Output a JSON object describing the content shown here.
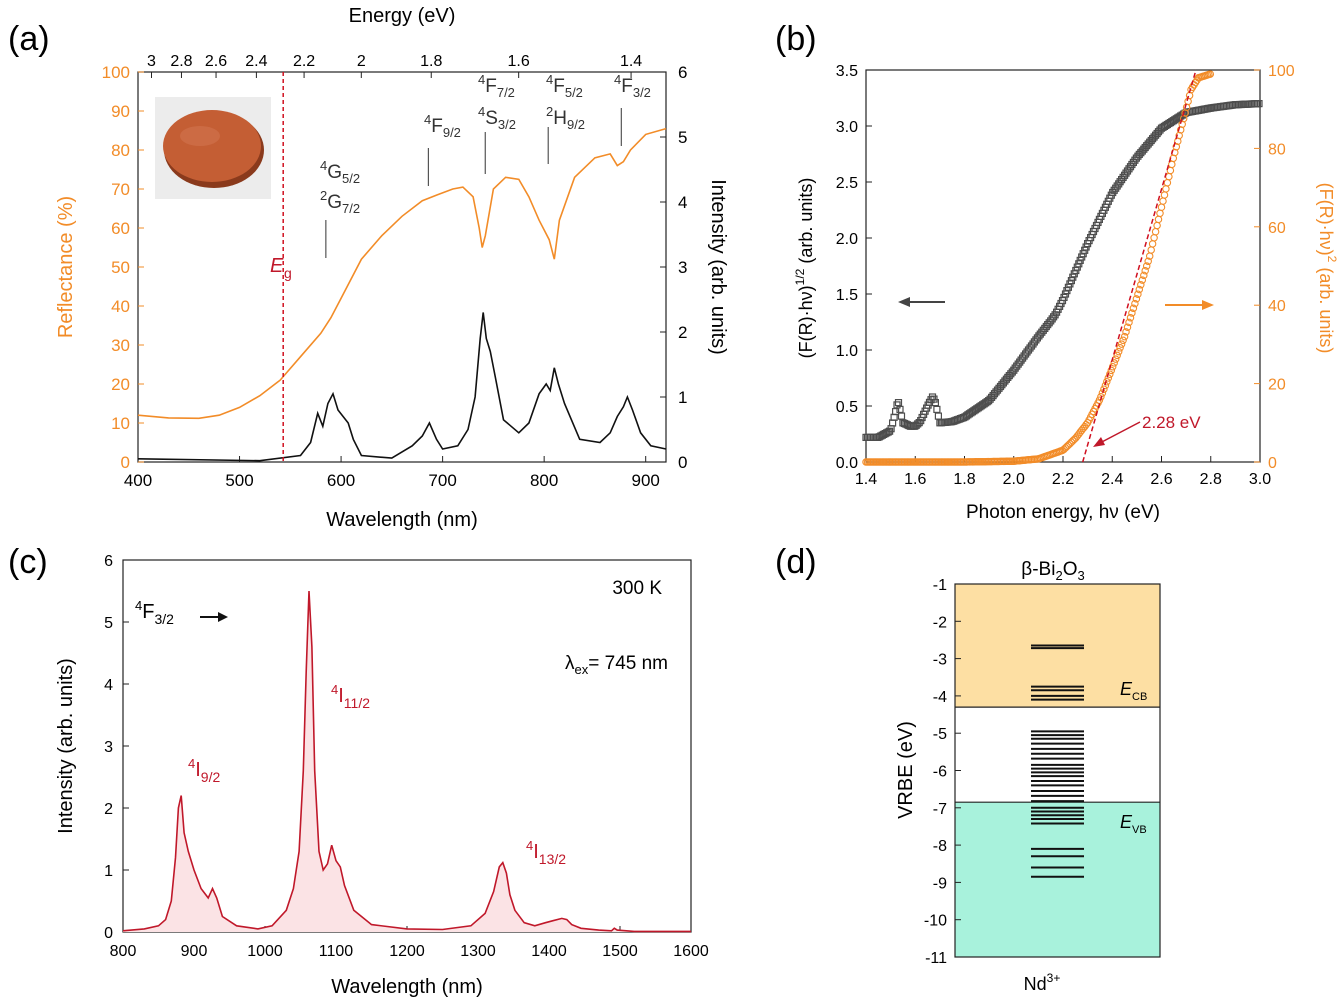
{
  "colors": {
    "orange": "#F28C28",
    "black": "#111111",
    "red": "#C0182A",
    "gray": "#4D4D4D",
    "cb_fill": "#FDDFA3",
    "vb_fill": "#A8F2DC",
    "dash_red": "#D01020"
  },
  "panel_labels": {
    "a": "(a)",
    "b": "(b)",
    "c": "(c)",
    "d": "(d)"
  },
  "chart_data": [
    {
      "id": "a",
      "type": "line",
      "xlabel": "Wavelength (nm)",
      "x2label": "Energy (eV)",
      "ylabel": "Reflectance (%)",
      "y2label": "Intensity (arb. units)",
      "xlim": [
        400,
        920
      ],
      "ylim": [
        0,
        100
      ],
      "y2lim": [
        0,
        6
      ],
      "x_ticks": [
        400,
        500,
        600,
        700,
        800,
        900
      ],
      "y_ticks": [
        0,
        10,
        20,
        30,
        40,
        50,
        60,
        70,
        80,
        90,
        100
      ],
      "y2_ticks": [
        0,
        1,
        2,
        3,
        4,
        5,
        6
      ],
      "energy_ticks": [
        "3",
        "2.8",
        "2.6",
        "2.4",
        "2.2",
        "2",
        "1.8",
        "1.6",
        "1.4"
      ],
      "energy_tick_values": [
        3,
        2.8,
        2.6,
        2.4,
        2.2,
        2,
        1.8,
        1.6,
        1.4
      ],
      "eg_label": "E",
      "eg_sub": "g",
      "eg_wavelength": 543,
      "series": [
        {
          "axis": "left",
          "color": "orange",
          "x": [
            400,
            430,
            460,
            480,
            500,
            520,
            540,
            560,
            580,
            590,
            600,
            620,
            640,
            660,
            680,
            695,
            710,
            720,
            730,
            736,
            739,
            742,
            750,
            762,
            775,
            785,
            795,
            805,
            810,
            815,
            830,
            850,
            865,
            872,
            878,
            885,
            900,
            920
          ],
          "y": [
            12,
            11.3,
            11.2,
            12,
            14,
            17,
            21,
            27,
            33,
            37,
            42,
            52,
            58,
            63,
            67,
            68.5,
            70,
            70.5,
            68,
            60,
            55,
            58,
            70,
            73,
            72.5,
            68,
            62,
            57,
            52,
            62,
            73,
            78,
            79,
            76,
            77,
            80,
            84,
            85.5
          ]
        },
        {
          "axis": "right",
          "color": "black",
          "x": [
            400,
            520,
            560,
            570,
            577,
            582,
            587,
            592,
            597,
            602,
            607,
            612,
            620,
            650,
            670,
            680,
            687,
            694,
            700,
            715,
            725,
            732,
            737,
            740,
            743,
            747,
            752,
            760,
            775,
            785,
            795,
            802,
            806,
            810,
            814,
            820,
            835,
            855,
            865,
            872,
            878,
            882,
            887,
            895,
            905,
            920
          ],
          "y": [
            0.05,
            0.02,
            0.1,
            0.3,
            0.75,
            0.55,
            0.9,
            1.05,
            0.8,
            0.7,
            0.6,
            0.35,
            0.1,
            0.06,
            0.25,
            0.4,
            0.6,
            0.35,
            0.2,
            0.25,
            0.5,
            1.0,
            1.9,
            2.3,
            1.9,
            1.7,
            1.3,
            0.65,
            0.45,
            0.6,
            1.05,
            1.2,
            1.1,
            1.45,
            1.2,
            0.9,
            0.35,
            0.3,
            0.45,
            0.7,
            0.85,
            1.0,
            0.8,
            0.45,
            0.25,
            0.2
          ]
        }
      ],
      "annotations": [
        {
          "text": "4G5/2 2G7/2",
          "x": 585,
          "lines": [
            "4",
            "G",
            "5/2",
            "2",
            "G",
            "7/2"
          ]
        },
        {
          "text": "4F9/2",
          "x": 686,
          "lines": [
            "4",
            "F",
            "9/2"
          ]
        },
        {
          "text": "4F7/2 4S3/2",
          "x": 742,
          "lines": [
            "4",
            "F",
            "7/2",
            "4",
            "S",
            "3/2"
          ]
        },
        {
          "text": "4F5/2 2H9/2",
          "x": 804,
          "lines": [
            "4",
            "F",
            "5/2",
            "2",
            "H",
            "9/2"
          ]
        },
        {
          "text": "4F3/2",
          "x": 876,
          "lines": [
            "4",
            "F",
            "3/2"
          ]
        }
      ]
    },
    {
      "id": "b",
      "type": "scatter",
      "xlabel": "Photon energy, hν (eV)",
      "ylabel_pre": "(F(R)·hν)",
      "ylabel_sup": "1/2",
      "ylabel_post": " (arb. units)",
      "y2label_pre": "(F(R)·hν)",
      "y2label_sup": "2",
      "y2label_post": " (arb. units)",
      "xlim": [
        1.4,
        3.0
      ],
      "ylim": [
        0,
        3.5
      ],
      "y2lim": [
        0,
        100
      ],
      "x_ticks": [
        "1.4",
        "1.6",
        "1.8",
        "2.0",
        "2.2",
        "2.4",
        "2.6",
        "2.8",
        "3.0"
      ],
      "y_ticks": [
        "0.0",
        "0.5",
        "1.0",
        "1.5",
        "2.0",
        "2.5",
        "3.0",
        "3.5"
      ],
      "y2_ticks": [
        "0",
        "20",
        "40",
        "60",
        "80",
        "100"
      ],
      "series": [
        {
          "axis": "left",
          "color": "gray",
          "x": [
            1.4,
            1.45,
            1.5,
            1.52,
            1.53,
            1.55,
            1.58,
            1.6,
            1.62,
            1.65,
            1.67,
            1.68,
            1.7,
            1.75,
            1.8,
            1.9,
            2.0,
            2.1,
            2.15,
            2.17,
            2.2,
            2.3,
            2.4,
            2.5,
            2.6,
            2.7,
            2.8,
            2.9,
            3.0
          ],
          "y": [
            0.22,
            0.22,
            0.28,
            0.45,
            0.55,
            0.35,
            0.32,
            0.32,
            0.36,
            0.5,
            0.58,
            0.55,
            0.35,
            0.36,
            0.4,
            0.55,
            0.82,
            1.12,
            1.26,
            1.32,
            1.45,
            1.95,
            2.4,
            2.72,
            2.98,
            3.12,
            3.16,
            3.19,
            3.2
          ]
        },
        {
          "axis": "right",
          "color": "orange",
          "x": [
            1.4,
            1.8,
            2.0,
            2.1,
            2.2,
            2.25,
            2.3,
            2.35,
            2.4,
            2.45,
            2.5,
            2.55,
            2.6,
            2.65,
            2.7,
            2.72,
            2.75,
            2.8
          ],
          "y": [
            0,
            0,
            0.2,
            0.8,
            3,
            6,
            10,
            16,
            24,
            32,
            42,
            52,
            65,
            78,
            90,
            95,
            98,
            99
          ]
        }
      ],
      "fit_line": {
        "x": [
          2.28,
          2.74
        ],
        "y2": [
          0,
          100
        ]
      },
      "annotation": {
        "text": "2.28 eV",
        "x": 2.28
      }
    },
    {
      "id": "c",
      "type": "area",
      "xlabel": "Wavelength (nm)",
      "ylabel": "Intensity (arb. units)",
      "xlim": [
        800,
        1600
      ],
      "ylim": [
        0,
        6
      ],
      "x_ticks": [
        800,
        900,
        1000,
        1100,
        1200,
        1300,
        1400,
        1500,
        1600
      ],
      "y_ticks": [
        0,
        1,
        2,
        3,
        4,
        5,
        6
      ],
      "temperature": "300 K",
      "excitation_pre": "λ",
      "excitation_sub": "ex",
      "excitation_post": "= 745 nm",
      "transition_from": {
        "sup": "4",
        "main": "F",
        "sub": "3/2"
      },
      "series": [
        {
          "color": "red",
          "x": [
            800,
            830,
            850,
            860,
            868,
            874,
            878,
            882,
            886,
            892,
            900,
            910,
            920,
            926,
            932,
            940,
            960,
            990,
            1010,
            1030,
            1040,
            1048,
            1054,
            1058,
            1062,
            1066,
            1070,
            1076,
            1082,
            1088,
            1094,
            1100,
            1106,
            1112,
            1125,
            1150,
            1200,
            1250,
            1290,
            1310,
            1322,
            1330,
            1335,
            1340,
            1345,
            1352,
            1365,
            1380,
            1395,
            1405,
            1418,
            1425,
            1432,
            1445,
            1470,
            1488,
            1492,
            1496,
            1520,
            1560,
            1600
          ],
          "y": [
            0.02,
            0.05,
            0.1,
            0.2,
            0.5,
            1.2,
            2.0,
            2.2,
            1.6,
            1.3,
            1.0,
            0.7,
            0.55,
            0.7,
            0.55,
            0.25,
            0.1,
            0.05,
            0.1,
            0.35,
            0.7,
            1.3,
            2.6,
            4.2,
            5.5,
            4.6,
            2.6,
            1.3,
            1.0,
            1.1,
            1.4,
            1.15,
            1.05,
            0.75,
            0.35,
            0.12,
            0.05,
            0.04,
            0.1,
            0.3,
            0.65,
            1.05,
            1.12,
            0.95,
            0.6,
            0.35,
            0.15,
            0.1,
            0.15,
            0.18,
            0.22,
            0.2,
            0.12,
            0.06,
            0.03,
            0.02,
            0.06,
            0.03,
            0.01,
            0.01,
            0.01
          ]
        }
      ],
      "peaks": [
        {
          "x": 880,
          "sup": "4",
          "main": "I",
          "sub": "9/2"
        },
        {
          "x": 1062,
          "sup": "4",
          "main": "I",
          "sub": "11/2"
        },
        {
          "x": 1336,
          "sup": "4",
          "main": "I",
          "sub": "13/2"
        }
      ]
    },
    {
      "id": "d",
      "type": "bar",
      "title_pre": "β-Bi",
      "title_sub1": "2",
      "title_mid": "O",
      "title_sub2": "3",
      "ylabel": "VRBE (eV)",
      "ylim": [
        -11,
        -1
      ],
      "y_ticks": [
        "-1",
        "-2",
        "-3",
        "-4",
        "-5",
        "-6",
        "-7",
        "-8",
        "-9",
        "-10",
        "-11"
      ],
      "ecb": -4.3,
      "evb": -6.85,
      "ecb_main": "E",
      "ecb_sub": "CB",
      "evb_main": "E",
      "evb_sub": "VB",
      "xlabel_main": "Nd",
      "xlabel_sup": "3+",
      "levels": [
        -2.65,
        -2.72,
        -3.75,
        -3.85,
        -4.0,
        -4.1,
        -4.95,
        -5.05,
        -5.15,
        -5.28,
        -5.42,
        -5.55,
        -5.68,
        -5.85,
        -5.95,
        -6.05,
        -6.15,
        -6.28,
        -6.4,
        -6.55,
        -6.68,
        -6.82,
        -7.0,
        -7.1,
        -7.2,
        -7.3,
        -7.42,
        -8.1,
        -8.3,
        -8.6,
        -8.85
      ]
    }
  ]
}
